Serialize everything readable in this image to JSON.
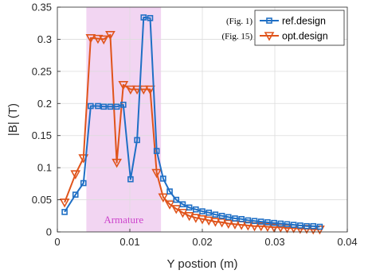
{
  "chart_data": {
    "type": "line",
    "title": "",
    "xlabel": "Y postion (m)",
    "ylabel": "|B| (T)",
    "xlim": [
      0,
      0.04
    ],
    "ylim": [
      0,
      0.35
    ],
    "xticks": [
      0,
      0.01,
      0.02,
      0.03,
      0.04
    ],
    "xtick_labels": [
      "0",
      "0.01",
      "0.02",
      "0.03",
      "0.04"
    ],
    "yticks": [
      0,
      0.05,
      0.1,
      0.15,
      0.2,
      0.25,
      0.3,
      0.35
    ],
    "ytick_labels": [
      "0",
      "0.05",
      "0.1",
      "0.15",
      "0.2",
      "0.25",
      "0.3",
      "0.35"
    ],
    "grid": true,
    "legend_position": "top-right",
    "region": {
      "label": "Armature",
      "x_start": 0.004,
      "x_end": 0.0143,
      "color": "#f2d5f2",
      "label_color": "#cc44cc"
    },
    "annotations": [
      "(Fig. 1)",
      "(Fig. 15)"
    ],
    "series": [
      {
        "name": "ref.design",
        "color": "#1f6fc5",
        "marker": "square",
        "x": [
          0.001,
          0.0025,
          0.0036,
          0.0046,
          0.0056,
          0.0064,
          0.0073,
          0.0082,
          0.0091,
          0.0101,
          0.011,
          0.0119,
          0.0128,
          0.0137,
          0.0146,
          0.0155,
          0.0164,
          0.0173,
          0.0182,
          0.0191,
          0.02,
          0.0209,
          0.0218,
          0.0227,
          0.0236,
          0.0245,
          0.0254,
          0.0263,
          0.0272,
          0.0281,
          0.029,
          0.0299,
          0.0308,
          0.0317,
          0.0326,
          0.0335,
          0.0344,
          0.0353,
          0.0362
        ],
        "y": [
          0.031,
          0.058,
          0.076,
          0.196,
          0.196,
          0.195,
          0.195,
          0.195,
          0.198,
          0.082,
          0.143,
          0.334,
          0.333,
          0.126,
          0.083,
          0.063,
          0.05,
          0.043,
          0.038,
          0.035,
          0.032,
          0.03,
          0.027,
          0.025,
          0.023,
          0.021,
          0.02,
          0.018,
          0.017,
          0.016,
          0.015,
          0.014,
          0.013,
          0.012,
          0.011,
          0.01,
          0.009,
          0.009,
          0.008
        ]
      },
      {
        "name": "opt.design",
        "color": "#e0541b",
        "marker": "triangle-down",
        "x": [
          0.001,
          0.0025,
          0.0036,
          0.0046,
          0.0056,
          0.0064,
          0.0073,
          0.0082,
          0.0091,
          0.0101,
          0.011,
          0.0119,
          0.0128,
          0.0137,
          0.0146,
          0.0155,
          0.0164,
          0.0173,
          0.0182,
          0.0191,
          0.02,
          0.0209,
          0.0218,
          0.0227,
          0.0236,
          0.0245,
          0.0254,
          0.0263,
          0.0272,
          0.0281,
          0.029,
          0.0299,
          0.0308,
          0.0317,
          0.0326,
          0.0335,
          0.0344,
          0.0353,
          0.0362
        ],
        "y": [
          0.046,
          0.09,
          0.115,
          0.302,
          0.301,
          0.3,
          0.307,
          0.108,
          0.229,
          0.222,
          0.222,
          0.222,
          0.222,
          0.092,
          0.054,
          0.043,
          0.036,
          0.03,
          0.025,
          0.022,
          0.02,
          0.018,
          0.016,
          0.015,
          0.013,
          0.012,
          0.011,
          0.01,
          0.009,
          0.009,
          0.008,
          0.007,
          0.007,
          0.006,
          0.006,
          0.005,
          0.005,
          0.004,
          0.004
        ]
      }
    ]
  }
}
